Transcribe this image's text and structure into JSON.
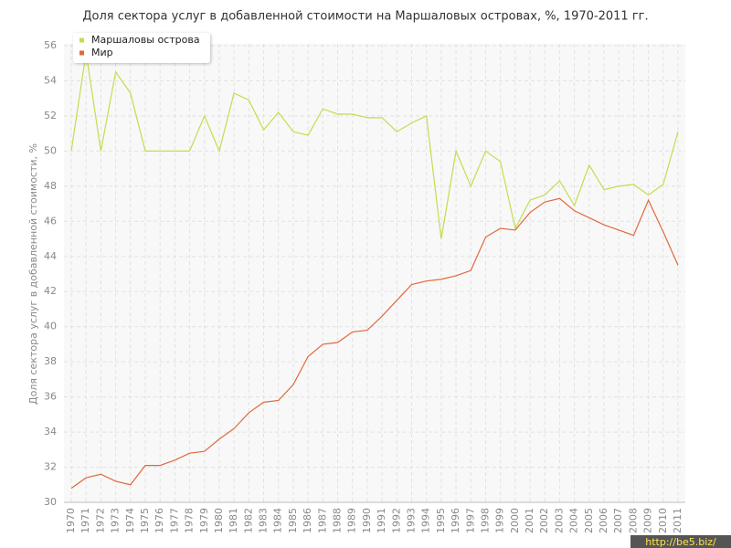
{
  "chart_data": {
    "type": "line",
    "title": "Доля сектора услуг в добавленной стоимости на Маршаловых островах, %, 1970-2011 гг.",
    "y_label": "Доля сектора услуг в добавленной стоимости, %",
    "watermark": "http://be5.biz/",
    "categories": [
      "1970",
      "1971",
      "1972",
      "1973",
      "1974",
      "1975",
      "1976",
      "1977",
      "1978",
      "1979",
      "1980",
      "1981",
      "1982",
      "1983",
      "1984",
      "1985",
      "1986",
      "1987",
      "1988",
      "1989",
      "1990",
      "1991",
      "1992",
      "1993",
      "1994",
      "1995",
      "1996",
      "1997",
      "1998",
      "1999",
      "2000",
      "2001",
      "2002",
      "2003",
      "2004",
      "2005",
      "2006",
      "2007",
      "2008",
      "2009",
      "2010",
      "2011"
    ],
    "series": [
      {
        "name": "Маршаловы острова",
        "color": "#c5dc4c",
        "values": [
          50,
          55.6,
          50,
          54.5,
          53.3,
          50,
          50,
          50,
          50,
          52,
          50,
          53.3,
          52.9,
          51.2,
          52.2,
          51.1,
          50.9,
          52.4,
          52.1,
          52.1,
          51.9,
          51.9,
          51.1,
          51.6,
          52,
          45,
          50,
          48,
          50,
          49.4,
          45.6,
          47.2,
          47.5,
          48.3,
          46.9,
          49.2,
          47.8,
          48,
          48.1,
          47.5,
          48.1,
          51.1
        ]
      },
      {
        "name": "Мир",
        "color": "#e0693c",
        "values": [
          30.8,
          31.4,
          31.6,
          31.2,
          31.0,
          32.1,
          32.1,
          32.4,
          32.8,
          32.9,
          33.6,
          34.2,
          35.1,
          35.7,
          35.8,
          36.7,
          38.3,
          39.0,
          39.1,
          39.7,
          39.8,
          40.6,
          41.5,
          42.4,
          42.6,
          42.7,
          42.9,
          43.2,
          45.1,
          45.6,
          45.5,
          46.5,
          47.1,
          47.3,
          46.6,
          46.2,
          45.8,
          45.5,
          45.2,
          47.2,
          45.4,
          43.5
        ]
      }
    ],
    "ylim": [
      30,
      56
    ],
    "yticks": [
      30,
      32,
      34,
      36,
      38,
      40,
      42,
      44,
      46,
      48,
      50,
      52,
      54,
      56
    ],
    "grid": true
  }
}
